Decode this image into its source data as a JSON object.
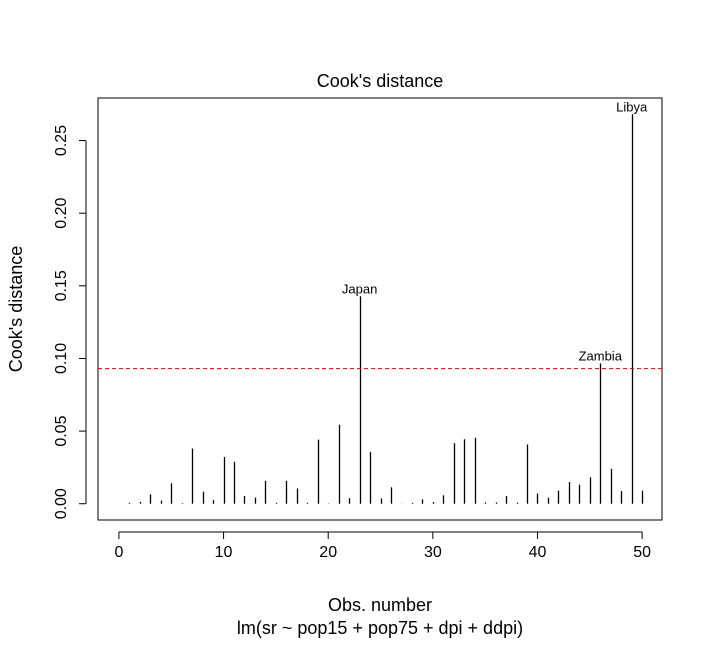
{
  "chart_data": {
    "type": "bar",
    "title": "Cook's distance",
    "xlabel": "Obs. number",
    "subtitle": "lm(sr ~ pop15 + pop75 + dpi + ddpi)",
    "ylabel": "Cook's distance",
    "xlim": [
      0,
      50
    ],
    "ylim": [
      0,
      0.28
    ],
    "x_ticks": [
      0,
      10,
      20,
      30,
      40,
      50
    ],
    "x_tick_labels": [
      "0",
      "10",
      "20",
      "30",
      "40",
      "50"
    ],
    "y_ticks": [
      0.0,
      0.05,
      0.1,
      0.15,
      0.2,
      0.25
    ],
    "y_tick_labels": [
      "0.00",
      "0.05",
      "0.10",
      "0.15",
      "0.20",
      "0.25"
    ],
    "grid": false,
    "legend": "none",
    "x": [
      1,
      2,
      3,
      4,
      5,
      6,
      7,
      8,
      9,
      10,
      11,
      12,
      13,
      14,
      15,
      16,
      17,
      18,
      19,
      20,
      21,
      22,
      23,
      24,
      25,
      26,
      27,
      28,
      29,
      30,
      31,
      32,
      33,
      34,
      35,
      36,
      37,
      38,
      39,
      40,
      41,
      42,
      43,
      44,
      45,
      46,
      47,
      48,
      49,
      50
    ],
    "values": [
      0.0006,
      0.0013,
      0.0065,
      0.0021,
      0.0141,
      0.0004,
      0.038,
      0.0083,
      0.0025,
      0.0322,
      0.0289,
      0.0053,
      0.0042,
      0.0158,
      0.0007,
      0.0158,
      0.0105,
      0.0007,
      0.0441,
      0.0002,
      0.0544,
      0.0039,
      0.1428,
      0.0357,
      0.0036,
      0.0113,
      0.0001,
      0.0006,
      0.003,
      0.0011,
      0.0058,
      0.0417,
      0.0444,
      0.0454,
      0.0009,
      0.0009,
      0.0053,
      0.0008,
      0.0408,
      0.007,
      0.0041,
      0.009,
      0.0149,
      0.0131,
      0.0182,
      0.0966,
      0.024,
      0.0088,
      0.2681,
      0.009
    ],
    "reference_line": {
      "y": 0.093,
      "style": "dashed",
      "color": "#dd0000"
    },
    "annotations": [
      {
        "label": "Japan",
        "x": 23,
        "y": 0.1428
      },
      {
        "label": "Zambia",
        "x": 46,
        "y": 0.0966
      },
      {
        "label": "Libya",
        "x": 49,
        "y": 0.2681
      }
    ],
    "bar_color": "#000000"
  }
}
